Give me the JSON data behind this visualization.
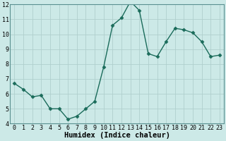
{
  "x": [
    0,
    1,
    2,
    3,
    4,
    5,
    6,
    7,
    8,
    9,
    10,
    11,
    12,
    13,
    14,
    15,
    16,
    17,
    18,
    19,
    20,
    21,
    22,
    23
  ],
  "y": [
    6.7,
    6.3,
    5.8,
    5.9,
    5.0,
    5.0,
    4.3,
    4.5,
    5.0,
    5.5,
    7.8,
    10.6,
    11.1,
    12.2,
    11.6,
    8.7,
    8.5,
    9.5,
    10.4,
    10.3,
    10.1,
    9.5,
    8.5,
    8.6
  ],
  "xlabel": "Humidex (Indice chaleur)",
  "ylim": [
    4,
    12
  ],
  "xlim_min": -0.5,
  "xlim_max": 23.5,
  "yticks": [
    4,
    5,
    6,
    7,
    8,
    9,
    10,
    11,
    12
  ],
  "xticks": [
    0,
    1,
    2,
    3,
    4,
    5,
    6,
    7,
    8,
    9,
    10,
    11,
    12,
    13,
    14,
    15,
    16,
    17,
    18,
    19,
    20,
    21,
    22,
    23
  ],
  "line_color": "#1a6b5a",
  "marker": "D",
  "marker_size": 2.5,
  "bg_color": "#cce9e7",
  "grid_color": "#b0cfcd",
  "tick_label_fontsize": 6,
  "xlabel_fontsize": 7.5,
  "linewidth": 1.0
}
